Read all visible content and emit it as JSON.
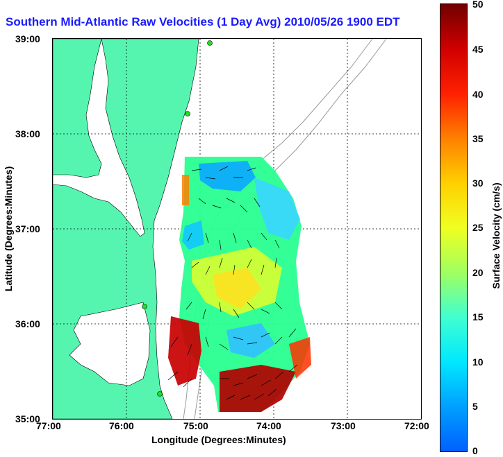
{
  "title": "Southern Mid-Atlantic Raw Velocities (1 Day Avg) 2010/05/26 1900 EDT",
  "x_axis": {
    "label": "Longitude (Degrees:Minutes)",
    "ticks": [
      "77:00",
      "76:00",
      "75:00",
      "74:00",
      "73:00",
      "72:00"
    ]
  },
  "y_axis": {
    "label": "Latitude (Degrees:Minutes)",
    "ticks": [
      "39:00",
      "38:00",
      "37:00",
      "36:00",
      "35:00"
    ]
  },
  "colorbar": {
    "label": "Surface Velocity (cm/s)",
    "ticks": [
      "50",
      "45",
      "40",
      "35",
      "30",
      "25",
      "20",
      "15",
      "10",
      "5",
      "0"
    ],
    "min": 0,
    "max": 50
  },
  "colors": {
    "land": "#55f5b0",
    "title": "#1a1aff",
    "bathymetry": "#9a9a9a"
  }
}
